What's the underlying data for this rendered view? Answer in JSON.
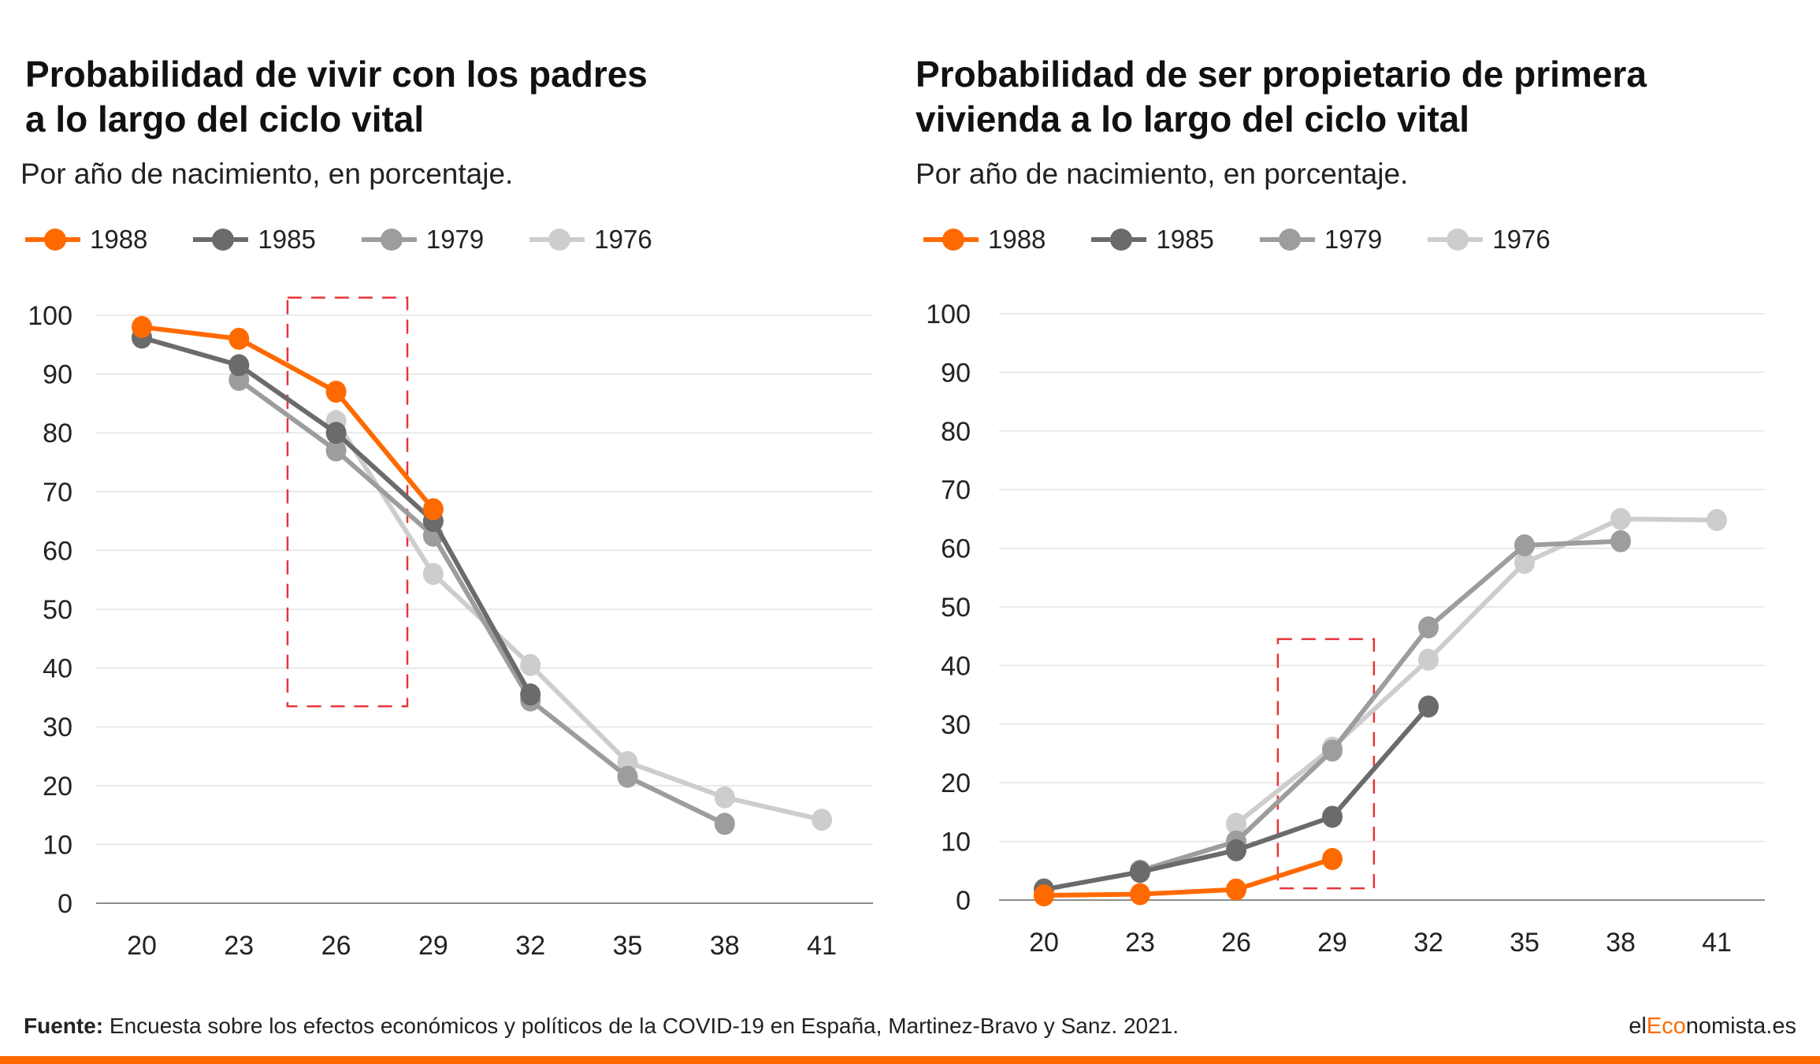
{
  "colors": {
    "accent": "#ff6a00",
    "series_1988": "#ff6a00",
    "series_1985": "#6b6b6b",
    "series_1979": "#9d9d9d",
    "series_1976": "#cdcdcd",
    "highlight": "#e8343a"
  },
  "legend": [
    {
      "label": "1988"
    },
    {
      "label": "1985"
    },
    {
      "label": "1979"
    },
    {
      "label": "1976"
    }
  ],
  "charts": [
    {
      "title_line1": "Probabilidad de vivir con los padres",
      "title_line2": "a lo largo del ciclo vital",
      "subtitle": "Por año de nacimiento, en porcentaje."
    },
    {
      "title_line1": "Probabilidad de ser propietario de primera",
      "title_line2": "vivienda a lo largo del ciclo vital",
      "subtitle": "Por año de nacimiento, en porcentaje."
    }
  ],
  "chart_data": [
    {
      "type": "line",
      "title": "Probabilidad de vivir con los padres a lo largo del ciclo vital",
      "subtitle": "Por año de nacimiento, en porcentaje.",
      "x": [
        20,
        23,
        26,
        29,
        32,
        35,
        38,
        41
      ],
      "ylim": [
        0,
        100
      ],
      "yticks": [
        0,
        10,
        20,
        30,
        40,
        50,
        60,
        70,
        80,
        90,
        100
      ],
      "grid": true,
      "legend_position": "top-left",
      "highlight_box": {
        "x_range": [
          24.5,
          28.2
        ],
        "y_range": [
          33.5,
          103
        ]
      },
      "series": [
        {
          "name": "1976",
          "values": [
            null,
            null,
            82,
            56,
            40.5,
            24,
            18,
            14.2
          ]
        },
        {
          "name": "1979",
          "values": [
            null,
            89,
            77,
            62.5,
            34.5,
            21.5,
            13.5,
            null
          ]
        },
        {
          "name": "1985",
          "values": [
            96.2,
            91.5,
            80,
            65,
            35.5,
            null,
            null,
            null
          ]
        },
        {
          "name": "1988",
          "values": [
            98,
            96,
            87,
            67,
            null,
            null,
            null,
            null
          ]
        }
      ]
    },
    {
      "type": "line",
      "title": "Probabilidad de ser propietario de primera vivienda a lo largo del ciclo vital",
      "subtitle": "Por año de nacimiento, en porcentaje.",
      "x": [
        20,
        23,
        26,
        29,
        32,
        35,
        38,
        41
      ],
      "ylim": [
        0,
        100
      ],
      "yticks": [
        0,
        10,
        20,
        30,
        40,
        50,
        60,
        70,
        80,
        90,
        100
      ],
      "grid": true,
      "legend_position": "top-left",
      "highlight_box": {
        "x_range": [
          27.3,
          30.3
        ],
        "y_range": [
          2,
          44.5
        ]
      },
      "series": [
        {
          "name": "1976",
          "values": [
            null,
            null,
            13,
            26,
            41,
            57.5,
            65,
            64.8
          ]
        },
        {
          "name": "1979",
          "values": [
            null,
            5,
            10,
            25.5,
            46.5,
            60.5,
            61.2,
            null
          ]
        },
        {
          "name": "1985",
          "values": [
            1.8,
            4.8,
            8.5,
            14.2,
            33,
            null,
            null,
            null
          ]
        },
        {
          "name": "1988",
          "values": [
            0.8,
            1,
            1.8,
            7,
            null,
            null,
            null,
            null
          ]
        }
      ]
    }
  ],
  "footer": {
    "source_label": "Fuente:",
    "source_text": " Encuesta sobre los efectos económicos y políticos de la COVID-19 en España, Martinez-Bravo y Sanz. 2021.",
    "brand_prefix": "el",
    "brand_accent": "Eco",
    "brand_suffix": "nomista.es"
  }
}
